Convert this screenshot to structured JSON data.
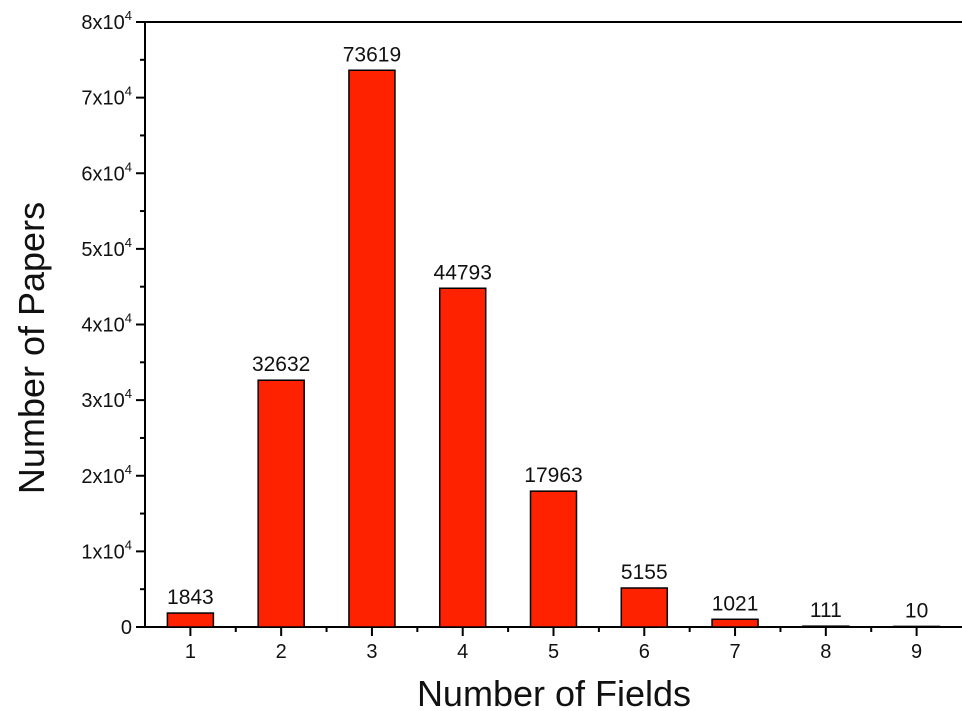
{
  "chart_data": {
    "type": "bar",
    "title": "",
    "xlabel": "Number of Fields",
    "ylabel": "Number of Papers",
    "categories": [
      "1",
      "2",
      "3",
      "4",
      "5",
      "6",
      "7",
      "8",
      "9"
    ],
    "values": [
      1843,
      32632,
      73619,
      44793,
      17963,
      5155,
      1021,
      111,
      10
    ],
    "data_labels": [
      "1843",
      "32632",
      "73619",
      "44793",
      "17963",
      "5155",
      "1021",
      "111",
      "10"
    ],
    "ylim": [
      0,
      80000
    ],
    "xlim": [
      0.5,
      9.5
    ],
    "y_ticks": [
      {
        "value": 0,
        "mantissa": "0",
        "exp": ""
      },
      {
        "value": 10000,
        "mantissa": "1x10",
        "exp": "4"
      },
      {
        "value": 20000,
        "mantissa": "2x10",
        "exp": "4"
      },
      {
        "value": 30000,
        "mantissa": "3x10",
        "exp": "4"
      },
      {
        "value": 40000,
        "mantissa": "4x10",
        "exp": "4"
      },
      {
        "value": 50000,
        "mantissa": "5x10",
        "exp": "4"
      },
      {
        "value": 60000,
        "mantissa": "6x10",
        "exp": "4"
      },
      {
        "value": 70000,
        "mantissa": "7x10",
        "exp": "4"
      },
      {
        "value": 80000,
        "mantissa": "8x10",
        "exp": "4"
      }
    ],
    "bar_color": "#ff2200",
    "bar_stroke": "#000000",
    "grid": false,
    "legend": "none"
  }
}
